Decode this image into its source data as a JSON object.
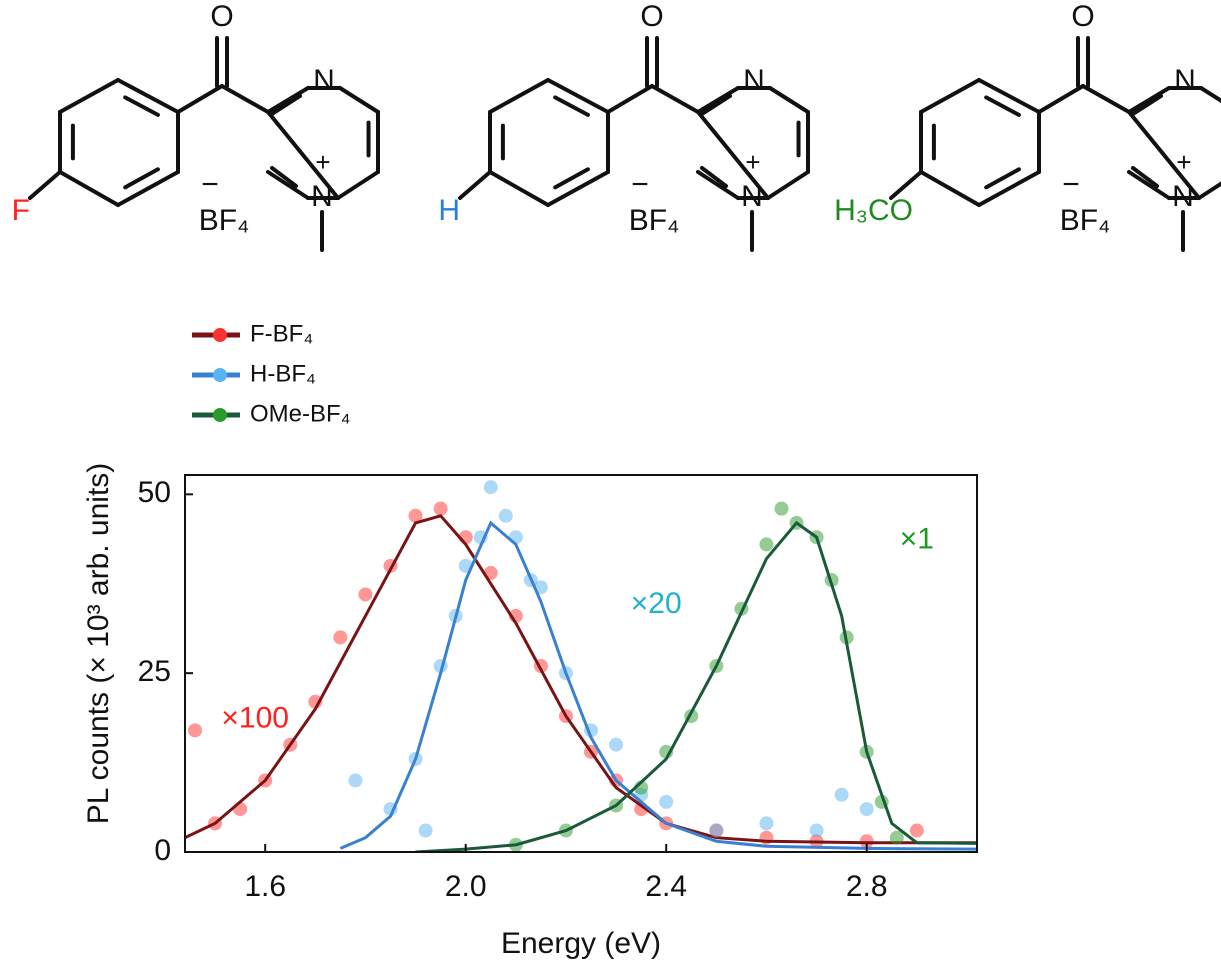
{
  "structures": [
    {
      "oxygen": "O",
      "n_top": "N",
      "n_bottom": "N",
      "charge": "+",
      "anion": "BF₄",
      "anion_charge": "−",
      "substituent": "F",
      "color": "#ff2020"
    },
    {
      "oxygen": "O",
      "n_top": "N",
      "n_bottom": "N",
      "charge": "+",
      "anion": "BF₄",
      "anion_charge": "−",
      "substituent": "H",
      "color": "#2a7fd8"
    },
    {
      "oxygen": "O",
      "n_top": "N",
      "n_bottom": "N",
      "charge": "+",
      "anion": "BF₄",
      "anion_charge": "−",
      "substituent": "H₃CO",
      "color": "#1f8a1f"
    }
  ],
  "chart_data": {
    "type": "scatter",
    "xlabel": "Energy (eV)",
    "ylabel": "PL counts (× 10³ arb. units)",
    "xlim": [
      1.44,
      3.02
    ],
    "ylim": [
      0,
      52.7
    ],
    "xticks": [
      1.6,
      {
        "value": 2,
        "label": "2.0"
      },
      2.4,
      2.8
    ],
    "yticks": [
      0,
      25,
      50
    ],
    "legend": "upper left",
    "annotations": [
      {
        "text": "×100",
        "color": "#ff2020",
        "x": 1.58,
        "y": 18.5
      },
      {
        "text": "×20",
        "color": "#22b0d0",
        "x": 2.38,
        "y": 34.5
      },
      {
        "text": "×1",
        "color": "#1f9a1f",
        "x": 2.9,
        "y": 43.5
      }
    ],
    "series": [
      {
        "name": "F-BF₄",
        "color": "#ff3030",
        "fit_color": "#7a1414",
        "scatter_x": [
          1.46,
          1.5,
          1.55,
          1.6,
          1.65,
          1.7,
          1.75,
          1.8,
          1.85,
          1.9,
          1.95,
          2.0,
          2.05,
          2.1,
          2.15,
          2.2,
          2.25,
          2.3,
          2.35,
          2.4,
          2.5,
          2.6,
          2.7,
          2.8,
          2.9
        ],
        "scatter_values": [
          17,
          4,
          6,
          10,
          15,
          21,
          30,
          36,
          40,
          47,
          48,
          44,
          39,
          33,
          26,
          19,
          14,
          10,
          6,
          4,
          3,
          2,
          1.5,
          1.5,
          3
        ],
        "x": [
          1.44,
          1.5,
          1.6,
          1.7,
          1.8,
          1.9,
          1.95,
          2.0,
          2.1,
          2.2,
          2.3,
          2.4,
          2.5,
          2.6,
          2.8,
          3.02
        ],
        "values": [
          2,
          4,
          10,
          20,
          33,
          46,
          47,
          43,
          32,
          19,
          9,
          4,
          2,
          1.5,
          1.3,
          1.3
        ]
      },
      {
        "name": "H-BF₄",
        "color": "#5ab4f0",
        "fit_color": "#3a80d0",
        "scatter_x": [
          1.78,
          1.85,
          1.9,
          1.92,
          1.95,
          1.98,
          2.0,
          2.03,
          2.05,
          2.08,
          2.1,
          2.13,
          2.15,
          2.2,
          2.25,
          2.3,
          2.35,
          2.4,
          2.5,
          2.6,
          2.7,
          2.75,
          2.8
        ],
        "scatter_values": [
          10,
          6,
          13,
          3,
          26,
          33,
          40,
          44,
          51,
          47,
          44,
          38,
          37,
          25,
          17,
          15,
          8,
          7,
          3,
          4,
          3,
          8,
          6
        ],
        "x": [
          1.75,
          1.8,
          1.85,
          1.9,
          1.95,
          2.0,
          2.05,
          2.1,
          2.15,
          2.2,
          2.25,
          2.3,
          2.4,
          2.5,
          2.6,
          2.8,
          3.02
        ],
        "values": [
          0.5,
          2,
          5,
          13,
          25,
          38,
          46,
          43,
          35,
          25,
          16,
          10,
          4,
          1.5,
          0.8,
          0.5,
          0.4
        ]
      },
      {
        "name": "OMe-BF₄",
        "color": "#2a9a2a",
        "fit_color": "#1a5a3a",
        "scatter_x": [
          2.1,
          2.2,
          2.3,
          2.35,
          2.4,
          2.45,
          2.5,
          2.55,
          2.6,
          2.63,
          2.66,
          2.7,
          2.73,
          2.76,
          2.8,
          2.83,
          2.86
        ],
        "scatter_values": [
          1,
          3,
          6.5,
          9,
          14,
          19,
          26,
          34,
          43,
          48,
          46,
          44,
          38,
          30,
          14,
          7,
          2
        ],
        "x": [
          1.9,
          2.0,
          2.1,
          2.2,
          2.3,
          2.4,
          2.5,
          2.6,
          2.66,
          2.7,
          2.75,
          2.8,
          2.85,
          2.9,
          3.02
        ],
        "values": [
          0,
          0.4,
          1,
          3,
          6.5,
          13,
          26,
          41,
          46,
          44,
          33,
          14,
          4,
          1.3,
          1.2
        ]
      }
    ]
  }
}
